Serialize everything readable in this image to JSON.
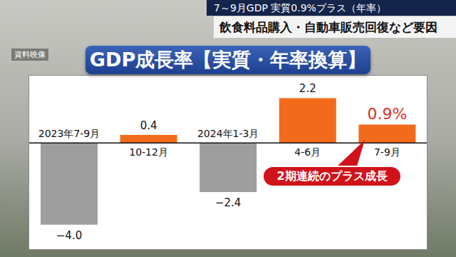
{
  "headlines": [
    "7～9月GDP 実質0.9%プラス（年率）",
    "飲食料品購入・自動車販売回復など要因"
  ],
  "source_note": "資料映像",
  "chart_data": {
    "type": "bar",
    "title": "GDP成長率【実質・年率換算】",
    "categories": [
      "2023年7-9月",
      "10-12月",
      "2024年1-3月",
      "4-6月",
      "7-9月"
    ],
    "values": [
      -4.0,
      0.4,
      -2.4,
      2.2,
      0.9
    ],
    "value_labels": [
      "−4.0",
      "0.4",
      "−2.4",
      "2.2",
      "0.9%"
    ],
    "colors": [
      "#9e9e9e",
      "#f26a1b",
      "#9e9e9e",
      "#f26a1b",
      "#f26a1b"
    ],
    "ylim": [
      -5.2,
      3.3
    ],
    "data_labels": true,
    "tick_labels": false,
    "annotations": [
      "2期連続のプラス成長"
    ]
  }
}
